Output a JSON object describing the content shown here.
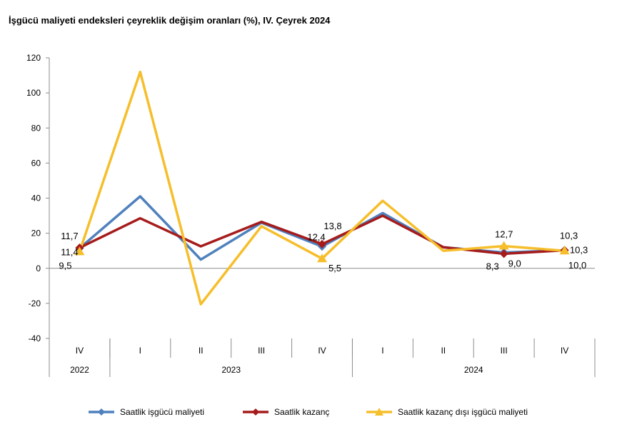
{
  "title": "İşgücü maliyeti endeksleri çeyreklik değişim oranları (%), IV. Çeyrek 2024",
  "chart_data": {
    "type": "line",
    "title": "İşgücü maliyeti endeksleri çeyreklik değişim oranları (%), IV. Çeyrek 2024",
    "quarters": [
      "IV",
      "I",
      "II",
      "III",
      "IV",
      "I",
      "II",
      "III",
      "IV"
    ],
    "years": [
      {
        "label": "2022",
        "span": 1
      },
      {
        "label": "2023",
        "span": 4
      },
      {
        "label": "2024",
        "span": 4
      }
    ],
    "ylim": [
      -40,
      120
    ],
    "yticks": [
      -40,
      -20,
      0,
      20,
      40,
      60,
      80,
      100,
      120
    ],
    "yticklabels": [
      "-40",
      "-20",
      "0",
      "20",
      "40",
      "60",
      "80",
      "100",
      "120"
    ],
    "grid": false,
    "legend_position": "bottom",
    "series": [
      {
        "name": "Saatlik işgücü maliyeti",
        "color": "#4F81BD",
        "values": [
          11.4,
          41,
          5,
          26,
          12.4,
          31.5,
          12,
          9.0,
          10.3
        ]
      },
      {
        "name": "Saatlik kazanç",
        "color": "#A61B1B",
        "values": [
          11.7,
          28.5,
          12.5,
          26.5,
          13.8,
          30,
          12,
          8.3,
          10.3
        ]
      },
      {
        "name": "Saatlik kazanç dışı işgücü maliyeti",
        "color": "#F6BE2A",
        "values": [
          9.5,
          112,
          -20.5,
          24,
          5.5,
          38.5,
          10,
          12.7,
          10.0
        ]
      }
    ],
    "data_labels": [
      {
        "text": "11,7",
        "series": 1,
        "index": 0
      },
      {
        "text": "11,4",
        "series": 0,
        "index": 0
      },
      {
        "text": "9,5",
        "series": 2,
        "index": 0
      },
      {
        "text": "12,4",
        "series": 0,
        "index": 4
      },
      {
        "text": "13,8",
        "series": 1,
        "index": 4
      },
      {
        "text": "5,5",
        "series": 2,
        "index": 4
      },
      {
        "text": "12,7",
        "series": 2,
        "index": 7
      },
      {
        "text": "8,3",
        "series": 1,
        "index": 7
      },
      {
        "text": "9,0",
        "series": 0,
        "index": 7
      },
      {
        "text": "10,3",
        "series": 1,
        "index": 8
      },
      {
        "text": "10,3",
        "series": 0,
        "index": 8
      },
      {
        "text": "10,0",
        "series": 2,
        "index": 8
      }
    ]
  }
}
